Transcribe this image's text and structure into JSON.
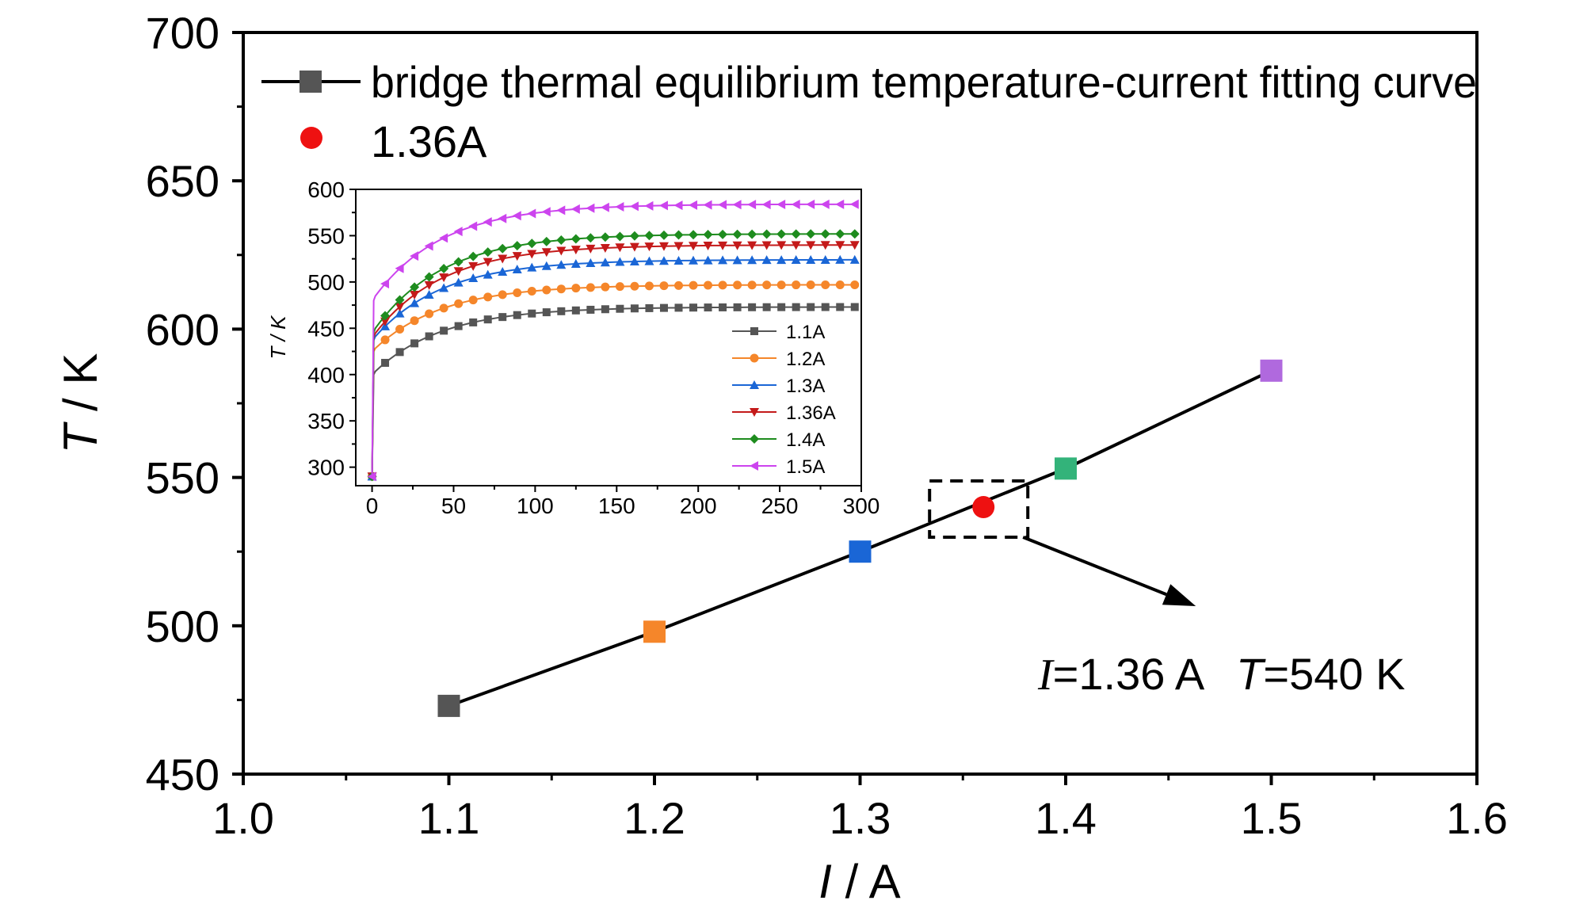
{
  "chart_data": [
    {
      "type": "line",
      "xlabel_var": "I",
      "xlabel_unit": " / A",
      "ylabel_var": "T",
      "ylabel_unit": " / K",
      "xlim": [
        1.0,
        1.6
      ],
      "ylim": [
        450,
        700
      ],
      "x_ticks": [
        "1.0",
        "1.1",
        "1.2",
        "1.3",
        "1.4",
        "1.5",
        "1.6"
      ],
      "y_ticks": [
        "450",
        "500",
        "550",
        "600",
        "650",
        "700"
      ],
      "legend": {
        "position": "top-left",
        "entries": [
          {
            "label": "bridge thermal equilibrium temperature-current fitting curve",
            "color": "#555555",
            "marker": "square"
          },
          {
            "label": "1.36A",
            "color": "#ee1111",
            "marker": "circle"
          }
        ]
      },
      "series": [
        {
          "name": "bridge thermal equilibrium temperature-current fitting curve",
          "line_color": "#000000",
          "points": [
            {
              "x": 1.1,
              "y": 473,
              "color": "#555555"
            },
            {
              "x": 1.2,
              "y": 498,
              "color": "#f5862a"
            },
            {
              "x": 1.3,
              "y": 525,
              "color": "#1a66d6"
            },
            {
              "x": 1.4,
              "y": 553,
              "color": "#33b37a"
            },
            {
              "x": 1.5,
              "y": 586,
              "color": "#b069de"
            }
          ]
        },
        {
          "name": "1.36A",
          "points": [
            {
              "x": 1.36,
              "y": 540,
              "color": "#ee1111"
            }
          ]
        }
      ],
      "annotation": {
        "target": {
          "x": 1.36,
          "y": 540
        },
        "label_I": "I",
        "label_I_value": "=1.36 A",
        "label_T": "T",
        "label_T_value": "=540 K"
      }
    },
    {
      "type": "line",
      "placement": "inset",
      "xlim": [
        -10,
        300
      ],
      "ylim": [
        280,
        600
      ],
      "ylabel": "T / K",
      "x_ticks": [
        "0",
        "50",
        "100",
        "150",
        "200",
        "250",
        "300"
      ],
      "y_ticks": [
        "300",
        "350",
        "400",
        "450",
        "500",
        "550",
        "600"
      ],
      "legend_position": "right-bottom",
      "initial": 290,
      "series": [
        {
          "name": "1.1A",
          "color": "#555555",
          "marker": "square",
          "jump": 400,
          "final": 473
        },
        {
          "name": "1.2A",
          "color": "#f5862a",
          "marker": "circle",
          "jump": 425,
          "final": 497
        },
        {
          "name": "1.3A",
          "color": "#1a66d6",
          "marker": "triangle-up",
          "jump": 437,
          "final": 524
        },
        {
          "name": "1.36A",
          "color": "#c41a1a",
          "marker": "triangle-down",
          "jump": 440,
          "final": 540
        },
        {
          "name": "1.4A",
          "color": "#1e8c1e",
          "marker": "diamond",
          "jump": 445,
          "final": 552
        },
        {
          "name": "1.5A",
          "color": "#cc44ee",
          "marker": "triangle-left",
          "jump": 480,
          "final": 584
        }
      ]
    }
  ]
}
